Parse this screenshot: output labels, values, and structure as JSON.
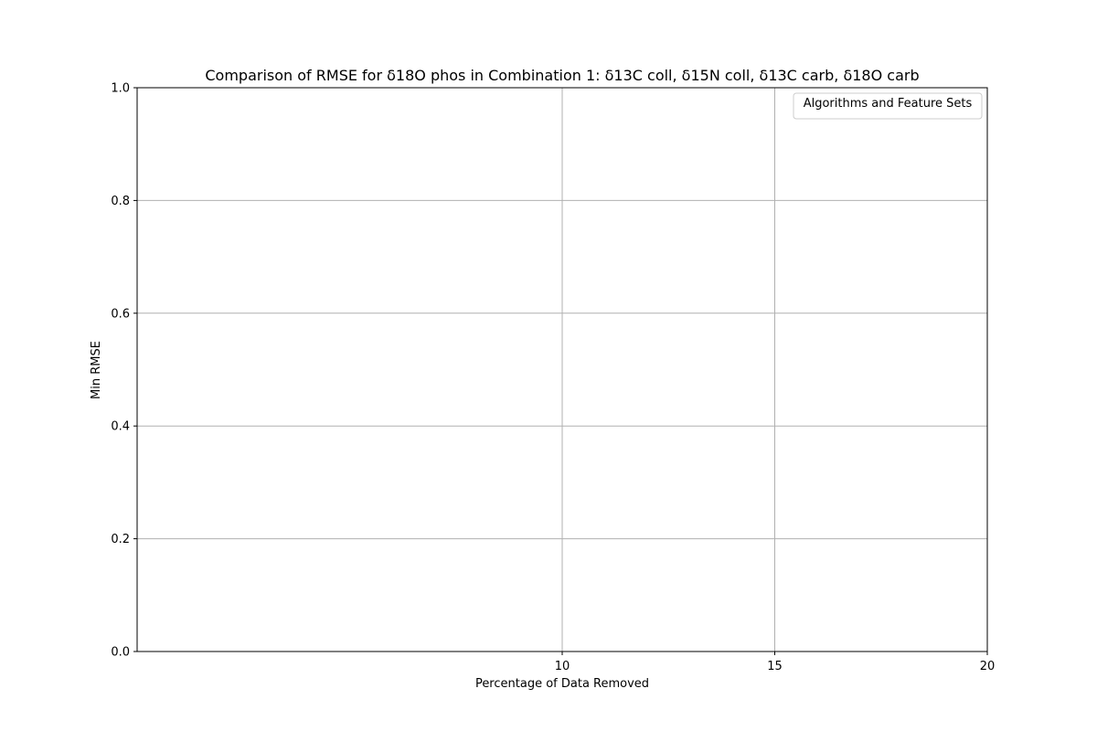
{
  "chart_data": {
    "type": "line",
    "title": "Comparison of RMSE for δ18O phos in Combination 1: δ13C coll, δ15N coll, δ13C carb, δ18O carb",
    "xlabel": "Percentage of Data Removed",
    "ylabel": "Min RMSE",
    "x_ticks": [
      10,
      15,
      20
    ],
    "y_ticks": [
      "0.0",
      "0.2",
      "0.4",
      "0.6",
      "0.8",
      "1.0"
    ],
    "ylim": [
      0,
      1
    ],
    "xlim": [
      0,
      20
    ],
    "grid": true,
    "legend": {
      "title": "Algorithms and Feature Sets",
      "placement": "top-right",
      "entries": []
    },
    "series": []
  },
  "colors": {
    "grid": "#b0b0b0",
    "axis": "#000000",
    "background": "#ffffff"
  }
}
